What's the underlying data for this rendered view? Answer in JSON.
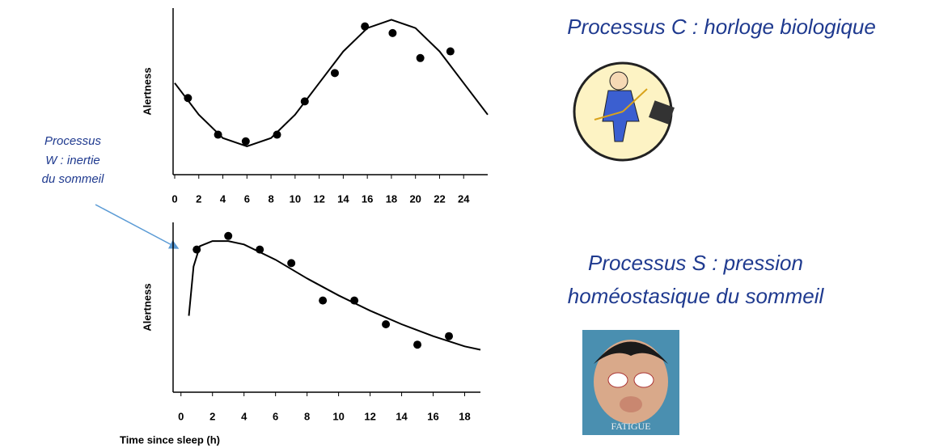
{
  "chart_data": [
    {
      "type": "scatter",
      "ylabel": "Alertness",
      "xlim": [
        0,
        26
      ],
      "xticks": [
        0,
        2,
        4,
        6,
        8,
        10,
        12,
        14,
        16,
        18,
        20,
        22,
        24
      ],
      "ylim": [
        0,
        10
      ],
      "series": [
        {
          "mode": "markers",
          "color": "#000000",
          "x": [
            1.1,
            3.6,
            5.9,
            8.5,
            10.8,
            13.3,
            15.8,
            18.1,
            20.4,
            22.9
          ],
          "values": [
            4.6,
            2.4,
            2.0,
            2.4,
            4.4,
            6.1,
            8.9,
            8.5,
            7.0,
            7.4
          ]
        },
        {
          "mode": "line",
          "color": "#000000",
          "x": [
            0,
            2,
            4,
            6,
            8,
            10,
            12,
            14,
            16,
            18,
            20,
            22,
            24,
            26
          ],
          "values": [
            5.5,
            3.6,
            2.2,
            1.7,
            2.2,
            3.6,
            5.5,
            7.4,
            8.8,
            9.3,
            8.8,
            7.4,
            5.5,
            3.6
          ]
        }
      ]
    },
    {
      "type": "scatter",
      "ylabel": "Alertness",
      "xlabel": "Time since sleep (h)",
      "xlim": [
        -0.5,
        19
      ],
      "xticks": [
        0,
        2,
        4,
        6,
        8,
        10,
        12,
        14,
        16,
        18
      ],
      "ylim": [
        0,
        10
      ],
      "series": [
        {
          "mode": "markers",
          "color": "#000000",
          "x": [
            1,
            3,
            5,
            7,
            9,
            11,
            13,
            15,
            17
          ],
          "values": [
            8.4,
            9.2,
            8.4,
            7.6,
            5.4,
            5.4,
            4.0,
            2.8,
            3.3
          ]
        },
        {
          "mode": "line",
          "color": "#000000",
          "x": [
            0.5,
            0.8,
            1.2,
            2,
            3,
            4,
            6,
            8,
            10,
            12,
            14,
            16,
            18,
            19
          ],
          "values": [
            4.5,
            7.4,
            8.6,
            8.9,
            8.9,
            8.7,
            7.8,
            6.7,
            5.7,
            4.8,
            4.0,
            3.3,
            2.7,
            2.5
          ]
        }
      ]
    }
  ],
  "captions": {
    "process_c": "Processus C : horloge biologique",
    "process_s": [
      "Processus S : pression",
      "homéostasique du sommeil"
    ],
    "process_w": [
      "Processus",
      "W : inertie",
      "du sommeil"
    ],
    "image_text": "FATIGUE"
  }
}
